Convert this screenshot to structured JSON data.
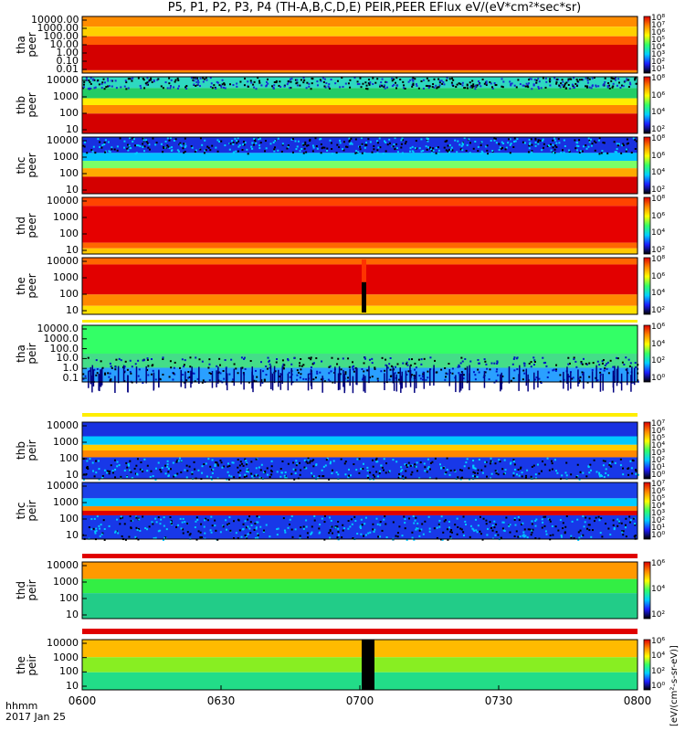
{
  "title": "P5, P1, P2, P3, P4 (TH-A,B,C,D,E) PEIR,PEER EFlux eV/(eV*cm²*sec*sr)",
  "time_label": "hhmm",
  "date_label": "2017 Jan 25",
  "unit_label": "[eV/(cm²-s-sr-eV)]",
  "chart_data": {
    "type": "heatmap",
    "x": {
      "ticks": [
        "0600",
        "0630",
        "0700",
        "0730",
        "0800"
      ]
    },
    "z_scale": "log",
    "colormap": [
      "#000000",
      "#1c1cff",
      "#00cfff",
      "#33ff66",
      "#ffff00",
      "#ff8800",
      "#e00000"
    ],
    "panels": [
      {
        "probe": "tha",
        "type": "peer",
        "ylabel": "tha\npeer",
        "yticks": [
          "10000.00",
          "1000.00",
          "100.00",
          "10.00",
          "1.00",
          "0.10",
          "0.01"
        ],
        "cbar_ticks": [
          "10⁸",
          "10⁷",
          "10⁶",
          "10⁵",
          "10⁴",
          "10³",
          "10²",
          "10¹"
        ]
      },
      {
        "probe": "thb",
        "type": "peer",
        "ylabel": "thb\npeer",
        "yticks": [
          "10000",
          "1000",
          "100",
          "10"
        ],
        "cbar_ticks": [
          "10⁸",
          "10⁶",
          "10⁴",
          "10²"
        ]
      },
      {
        "probe": "thc",
        "type": "peer",
        "ylabel": "thc\npeer",
        "yticks": [
          "10000",
          "1000",
          "100",
          "10"
        ],
        "cbar_ticks": [
          "10⁸",
          "10⁶",
          "10⁴",
          "10²"
        ]
      },
      {
        "probe": "thd",
        "type": "peer",
        "ylabel": "thd\npeer",
        "yticks": [
          "10000",
          "1000",
          "100",
          "10"
        ],
        "cbar_ticks": [
          "10⁸",
          "10⁶",
          "10⁴",
          "10²"
        ]
      },
      {
        "probe": "the",
        "type": "peer",
        "ylabel": "the\npeer",
        "yticks": [
          "10000",
          "1000",
          "100",
          "10"
        ],
        "cbar_ticks": [
          "10⁸",
          "10⁶",
          "10⁴",
          "10²"
        ]
      },
      {
        "probe": "tha",
        "type": "peir",
        "ylabel": "tha\npeir",
        "yticks": [
          "10000.0",
          "1000.0",
          "100.0",
          "10.0",
          "1.0",
          "0.1"
        ],
        "cbar_ticks": [
          "10⁶",
          "10⁴",
          "10²",
          "10⁰"
        ]
      },
      {
        "probe": "thb",
        "type": "peir",
        "ylabel": "thb\npeir",
        "yticks": [
          "10000",
          "1000",
          "100",
          "10"
        ],
        "cbar_ticks": [
          "10⁷",
          "10⁶",
          "10⁵",
          "10⁴",
          "10³",
          "10²",
          "10¹",
          "10⁰"
        ]
      },
      {
        "probe": "thc",
        "type": "peir",
        "ylabel": "thc\npeir",
        "yticks": [
          "10000",
          "1000",
          "100",
          "10"
        ],
        "cbar_ticks": [
          "10⁷",
          "10⁶",
          "10⁵",
          "10⁴",
          "10³",
          "10²",
          "10¹",
          "10⁰"
        ]
      },
      {
        "probe": "thd",
        "type": "peir",
        "ylabel": "thd\npeir",
        "yticks": [
          "10000",
          "1000",
          "100",
          "10"
        ],
        "cbar_ticks": [
          "10⁶",
          "10⁴",
          "10²"
        ]
      },
      {
        "probe": "the",
        "type": "peir",
        "ylabel": "the\npeir",
        "yticks": [
          "10000",
          "1000",
          "100",
          "10"
        ],
        "cbar_ticks": [
          "10⁶",
          "10⁴",
          "10²",
          "10⁰"
        ]
      }
    ]
  }
}
